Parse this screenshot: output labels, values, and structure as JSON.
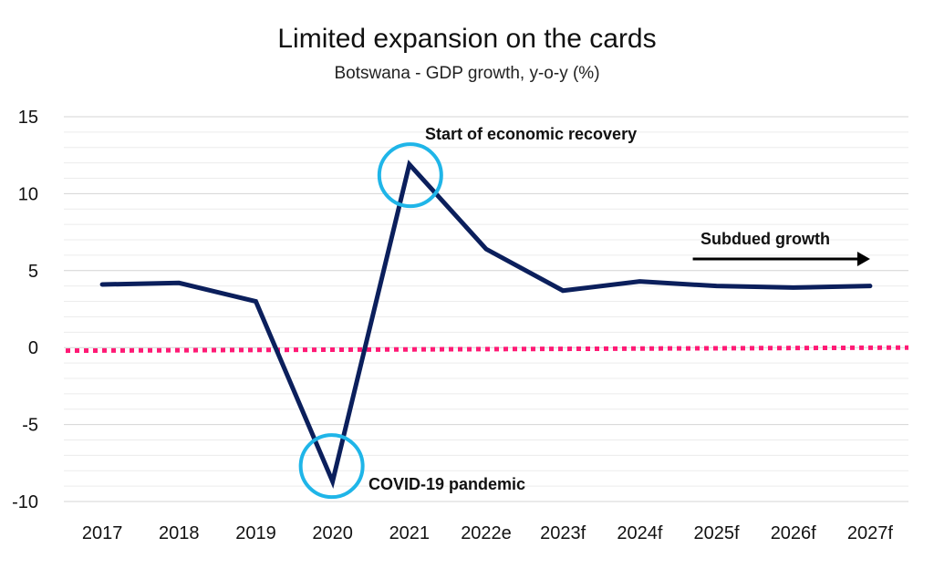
{
  "chart_data": {
    "type": "line",
    "title": "Limited expansion on the cards",
    "subtitle": "Botswana - GDP growth, y-o-y (%)",
    "xlabel": "",
    "ylabel": "",
    "categories": [
      "2017",
      "2018",
      "2019",
      "2020",
      "2021",
      "2022e",
      "2023f",
      "2024f",
      "2025f",
      "2026f",
      "2027f"
    ],
    "series": [
      {
        "name": "Botswana GDP growth, y-o-y (%)",
        "values": [
          4.1,
          4.2,
          3.0,
          -8.7,
          11.9,
          6.4,
          3.7,
          4.3,
          4.0,
          3.9,
          4.0
        ],
        "color": "#0b1f5c"
      }
    ],
    "reference_line": {
      "y_start": -0.2,
      "y_end": 0.0,
      "color": "#ff1a75",
      "style": "dotted"
    },
    "ylim": [
      -10,
      15
    ],
    "yticks": [
      -10,
      -5,
      0,
      5,
      10,
      15
    ],
    "ytick_labels": [
      "-10",
      "-5",
      "0",
      "5",
      "10",
      "15"
    ],
    "grid": true,
    "annotations": {
      "recovery": {
        "text": "Start of economic recovery",
        "category": "2021",
        "value": 11.2
      },
      "covid": {
        "text": "COVID-19 pandemic",
        "category": "2020",
        "value": -7.7
      },
      "subdued": {
        "text": "Subdued growth",
        "from_category": "2025f",
        "to_category": "2027f",
        "value": 5.8
      }
    },
    "highlight_color": "#1fb5e8",
    "arrow_color": "#000000"
  }
}
